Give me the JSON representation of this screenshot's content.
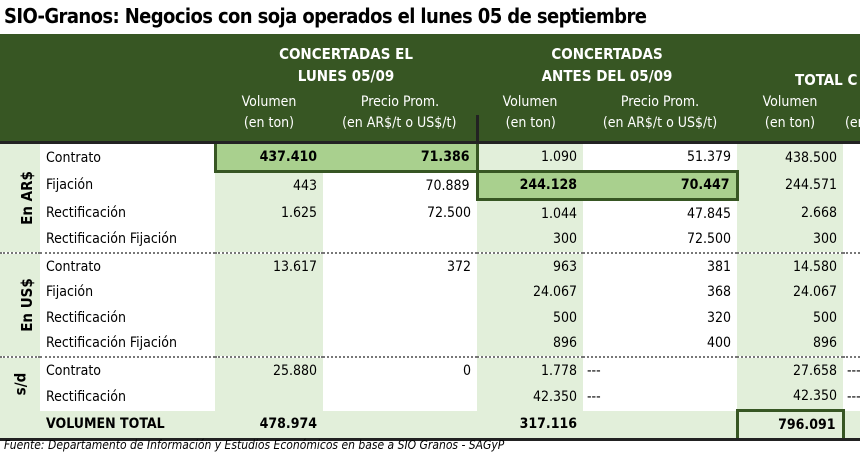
{
  "title": "SIO-Granos: Negocios con soja operados el lunes 05 de septiembre",
  "header": {
    "group1_line1": "CONCERTADAS EL",
    "group1_line2": "LUNES 05/09",
    "group2_line1": "CONCERTADAS",
    "group2_line2": "ANTES DEL 05/09",
    "group3": "TOTAL C",
    "vol_line1": "Volumen",
    "vol_line2": "(en ton)",
    "price_line1": "Precio Prom.",
    "price_line2": "(en AR$/t o US$/t)",
    "last_partial": "(en"
  },
  "groups": [
    "En AR$",
    "En US$",
    "s/d"
  ],
  "rows": [
    {
      "label": "Contrato",
      "v1": "437.410",
      "p1": "71.386",
      "v2": "1.090",
      "p2": "51.379",
      "v3": "438.500",
      "x": ""
    },
    {
      "label": "Fijación",
      "v1": "443",
      "p1": "70.889",
      "v2": "244.128",
      "p2": "70.447",
      "v3": "244.571",
      "x": ""
    },
    {
      "label": "Rectificación",
      "v1": "1.625",
      "p1": "72.500",
      "v2": "1.044",
      "p2": "47.845",
      "v3": "2.668",
      "x": ""
    },
    {
      "label": "Rectificación Fijación",
      "v1": "",
      "p1": "",
      "v2": "300",
      "p2": "72.500",
      "v3": "300",
      "x": ""
    },
    {
      "label": "Contrato",
      "v1": "13.617",
      "p1": "372",
      "v2": "963",
      "p2": "381",
      "v3": "14.580",
      "x": ""
    },
    {
      "label": "Fijación",
      "v1": "",
      "p1": "",
      "v2": "24.067",
      "p2": "368",
      "v3": "24.067",
      "x": ""
    },
    {
      "label": "Rectificación",
      "v1": "",
      "p1": "",
      "v2": "500",
      "p2": "320",
      "v3": "500",
      "x": ""
    },
    {
      "label": "Rectificación Fijación",
      "v1": "",
      "p1": "",
      "v2": "896",
      "p2": "400",
      "v3": "896",
      "x": ""
    },
    {
      "label": "Contrato",
      "v1": "25.880",
      "p1": "0",
      "v2": "1.778",
      "p2": "---",
      "v3": "27.658",
      "x": "---"
    },
    {
      "label": "Rectificación",
      "v1": "",
      "p1": "",
      "v2": "42.350",
      "p2": "---",
      "v3": "42.350",
      "x": "---"
    }
  ],
  "total": {
    "label": "VOLUMEN TOTAL",
    "v1": "478.974",
    "v2": "317.116",
    "v3": "796.091"
  },
  "footer": "Fuente: Departamento de Información y Estudios Económicos en base a SIO Granos - SAGyP",
  "colors": {
    "header": "#375623",
    "light": "#E2EFDA",
    "highlight": "#A9D08E"
  }
}
